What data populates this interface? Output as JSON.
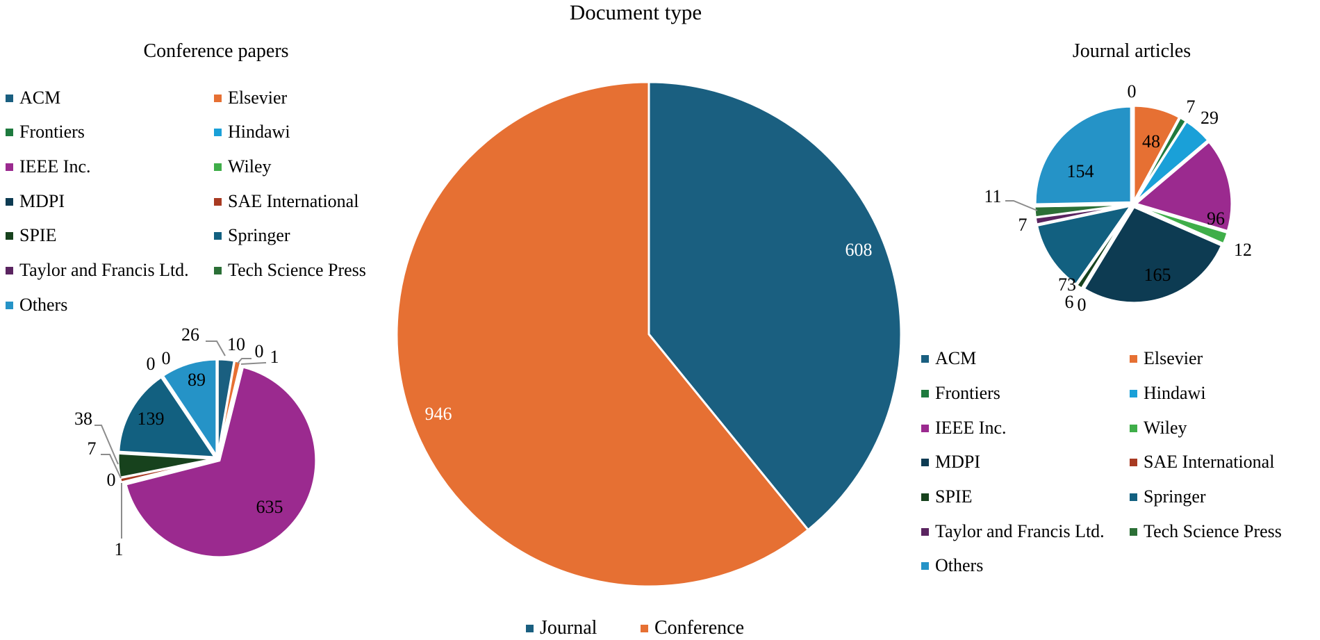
{
  "colors": {
    "ACM": "#1a5f80",
    "Elsevier": "#e67033",
    "Frontiers": "#1e7a3e",
    "Hindawi": "#1aa0d8",
    "IEEE Inc.": "#9b2a8f",
    "Wiley": "#3fae49",
    "MDPI": "#0d3b52",
    "SAE International": "#a83a22",
    "SPIE": "#17421d",
    "Springer": "#126080",
    "Taylor and Francis Ltd.": "#5a2460",
    "Tech Science Press": "#2b6f36",
    "Others": "#2593c7",
    "Journal": "#1a5f80",
    "Conference": "#e67033"
  },
  "titles": {
    "main": "Document type",
    "conference": "Conference papers",
    "journal": "Journal articles"
  },
  "publisher_legend": [
    "ACM",
    "Elsevier",
    "Frontiers",
    "Hindawi",
    "IEEE Inc.",
    "Wiley",
    "MDPI",
    "SAE International",
    "SPIE",
    "Springer",
    "Taylor and Francis Ltd.",
    "Tech Science Press",
    "Others"
  ],
  "bottom_legend": [
    "Journal",
    "Conference"
  ],
  "chart_data": [
    {
      "type": "pie",
      "title": "Document type",
      "categories": [
        "Journal",
        "Conference"
      ],
      "values": [
        608,
        946
      ],
      "legend_position": "bottom"
    },
    {
      "type": "pie",
      "title": "Conference papers",
      "categories": [
        "ACM",
        "Elsevier",
        "Frontiers",
        "Hindawi",
        "IEEE Inc.",
        "Wiley",
        "MDPI",
        "SAE International",
        "SPIE",
        "Springer",
        "Taylor and Francis Ltd.",
        "Tech Science Press",
        "Others"
      ],
      "values": [
        26,
        10,
        0,
        1,
        635,
        1,
        0,
        7,
        38,
        139,
        0,
        0,
        89
      ],
      "total": 946,
      "legend_position": "top-left"
    },
    {
      "type": "pie",
      "title": "Journal articles",
      "categories": [
        "ACM",
        "Elsevier",
        "Frontiers",
        "Hindawi",
        "IEEE Inc.",
        "Wiley",
        "MDPI",
        "SAE International",
        "SPIE",
        "Springer",
        "Taylor and Francis Ltd.",
        "Tech Science Press",
        "Others"
      ],
      "values": [
        0,
        48,
        7,
        29,
        96,
        12,
        165,
        0,
        6,
        73,
        7,
        11,
        154
      ],
      "total": 608,
      "legend_position": "bottom-right"
    }
  ]
}
